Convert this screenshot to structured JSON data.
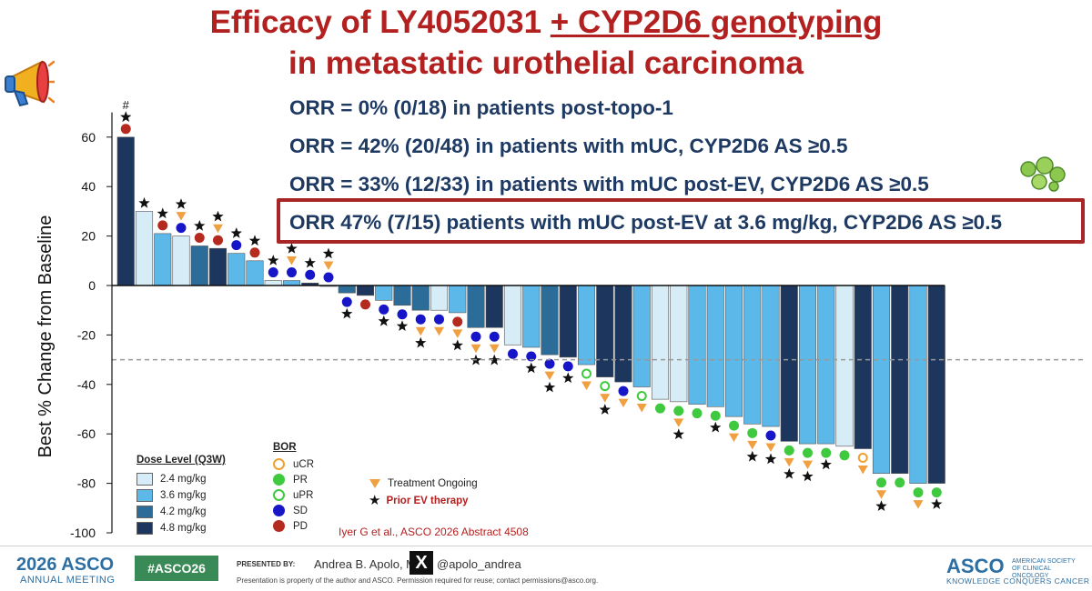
{
  "title": {
    "part1": "Efficacy of LY4052031 ",
    "part2": "+ CYP2D6 genotyping",
    "line2": "in metastatic urothelial carcinoma"
  },
  "orr": [
    "ORR = 0% (0/18) in patients post-topo-1",
    "ORR = 42% (20/48) in patients with mUC, CYP2D6 AS ≥0.5",
    "ORR = 33% (12/33) in patients with mUC post-EV, CYP2D6 AS ≥0.5",
    "ORR 47% (7/15) patients with mUC post-EV at 3.6 mg/kg, CYP2D6 AS ≥0.5"
  ],
  "legend": {
    "dose_title": "Dose Level (Q3W)",
    "doses": [
      {
        "label": "2.4 mg/kg",
        "color": "#d6ecf6"
      },
      {
        "label": "3.6 mg/kg",
        "color": "#5bb8e8"
      },
      {
        "label": "4.2 mg/kg",
        "color": "#2c6c99"
      },
      {
        "label": "4.8 mg/kg",
        "color": "#1c365e"
      }
    ],
    "bor_title": "BOR",
    "bor": [
      {
        "label": "uCR",
        "code": "uCR",
        "color": "#f0a030"
      },
      {
        "label": "PR",
        "code": "PR",
        "color": "#3ec93e"
      },
      {
        "label": "uPR",
        "code": "uPR",
        "color": "#3ec93e"
      },
      {
        "label": "SD",
        "code": "SD",
        "color": "#1616c8"
      },
      {
        "label": "PD",
        "code": "PD",
        "color": "#b52a1f"
      }
    ],
    "ongoing_label": "Treatment Ongoing",
    "ongoing_color": "#f0a040",
    "prior_ev_label": "Prior EV therapy",
    "prior_ev_color": "#b32020"
  },
  "chart_data": {
    "type": "bar",
    "ylabel": "Best % Change from Baseline",
    "ylim": [
      -100,
      70
    ],
    "yticks": [
      60,
      40,
      20,
      0,
      -20,
      -40,
      -60,
      -80,
      -100
    ],
    "reference_line": -30,
    "annotation_first_bar": "#",
    "dose_levels": [
      "2.4 mg/kg",
      "3.6 mg/kg",
      "4.2 mg/kg",
      "4.8 mg/kg"
    ],
    "bars": [
      {
        "value": 60,
        "dose": 3,
        "bor": "PD",
        "ongoing": false,
        "prior_ev": true
      },
      {
        "value": 30,
        "dose": 0,
        "bor": "",
        "ongoing": false,
        "prior_ev": true
      },
      {
        "value": 21,
        "dose": 1,
        "bor": "PD",
        "ongoing": false,
        "prior_ev": true
      },
      {
        "value": 20,
        "dose": 0,
        "bor": "SD",
        "ongoing": true,
        "prior_ev": true
      },
      {
        "value": 16,
        "dose": 2,
        "bor": "PD",
        "ongoing": false,
        "prior_ev": true
      },
      {
        "value": 15,
        "dose": 3,
        "bor": "PD",
        "ongoing": true,
        "prior_ev": true
      },
      {
        "value": 13,
        "dose": 1,
        "bor": "SD",
        "ongoing": false,
        "prior_ev": true
      },
      {
        "value": 10,
        "dose": 1,
        "bor": "PD",
        "ongoing": false,
        "prior_ev": true
      },
      {
        "value": 2,
        "dose": 0,
        "bor": "SD",
        "ongoing": false,
        "prior_ev": true
      },
      {
        "value": 2,
        "dose": 1,
        "bor": "SD",
        "ongoing": true,
        "prior_ev": true
      },
      {
        "value": 1,
        "dose": 3,
        "bor": "SD",
        "ongoing": false,
        "prior_ev": true
      },
      {
        "value": 0,
        "dose": 1,
        "bor": "SD",
        "ongoing": true,
        "prior_ev": true
      },
      {
        "value": -3,
        "dose": 2,
        "bor": "SD",
        "ongoing": false,
        "prior_ev": true
      },
      {
        "value": -4,
        "dose": 3,
        "bor": "PD",
        "ongoing": false,
        "prior_ev": false
      },
      {
        "value": -6,
        "dose": 1,
        "bor": "SD",
        "ongoing": false,
        "prior_ev": true
      },
      {
        "value": -8,
        "dose": 2,
        "bor": "SD",
        "ongoing": false,
        "prior_ev": true
      },
      {
        "value": -10,
        "dose": 2,
        "bor": "SD",
        "ongoing": true,
        "prior_ev": true
      },
      {
        "value": -10,
        "dose": 0,
        "bor": "SD",
        "ongoing": true,
        "prior_ev": false
      },
      {
        "value": -11,
        "dose": 1,
        "bor": "PD",
        "ongoing": true,
        "prior_ev": true
      },
      {
        "value": -17,
        "dose": 2,
        "bor": "SD",
        "ongoing": true,
        "prior_ev": true
      },
      {
        "value": -17,
        "dose": 3,
        "bor": "SD",
        "ongoing": true,
        "prior_ev": true
      },
      {
        "value": -24,
        "dose": 0,
        "bor": "SD",
        "ongoing": false,
        "prior_ev": false
      },
      {
        "value": -25,
        "dose": 1,
        "bor": "SD",
        "ongoing": false,
        "prior_ev": true
      },
      {
        "value": -28,
        "dose": 2,
        "bor": "SD",
        "ongoing": true,
        "prior_ev": true
      },
      {
        "value": -29,
        "dose": 3,
        "bor": "SD",
        "ongoing": false,
        "prior_ev": true
      },
      {
        "value": -32,
        "dose": 1,
        "bor": "uPR",
        "ongoing": true,
        "prior_ev": false
      },
      {
        "value": -37,
        "dose": 3,
        "bor": "uPR",
        "ongoing": true,
        "prior_ev": true
      },
      {
        "value": -39,
        "dose": 3,
        "bor": "SD",
        "ongoing": true,
        "prior_ev": false
      },
      {
        "value": -41,
        "dose": 1,
        "bor": "uPR",
        "ongoing": true,
        "prior_ev": false
      },
      {
        "value": -46,
        "dose": 0,
        "bor": "PR",
        "ongoing": false,
        "prior_ev": false
      },
      {
        "value": -47,
        "dose": 0,
        "bor": "PR",
        "ongoing": true,
        "prior_ev": true
      },
      {
        "value": -48,
        "dose": 1,
        "bor": "PR",
        "ongoing": false,
        "prior_ev": false
      },
      {
        "value": -49,
        "dose": 1,
        "bor": "PR",
        "ongoing": false,
        "prior_ev": true
      },
      {
        "value": -53,
        "dose": 1,
        "bor": "PR",
        "ongoing": true,
        "prior_ev": false
      },
      {
        "value": -56,
        "dose": 1,
        "bor": "PR",
        "ongoing": true,
        "prior_ev": true
      },
      {
        "value": -57,
        "dose": 1,
        "bor": "SD",
        "ongoing": true,
        "prior_ev": true
      },
      {
        "value": -63,
        "dose": 3,
        "bor": "PR",
        "ongoing": true,
        "prior_ev": true
      },
      {
        "value": -64,
        "dose": 1,
        "bor": "PR",
        "ongoing": true,
        "prior_ev": true
      },
      {
        "value": -64,
        "dose": 1,
        "bor": "PR",
        "ongoing": false,
        "prior_ev": true
      },
      {
        "value": -65,
        "dose": 0,
        "bor": "PR",
        "ongoing": false,
        "prior_ev": false
      },
      {
        "value": -66,
        "dose": 3,
        "bor": "uCR",
        "ongoing": true,
        "prior_ev": false
      },
      {
        "value": -76,
        "dose": 1,
        "bor": "PR",
        "ongoing": true,
        "prior_ev": true
      },
      {
        "value": -76,
        "dose": 3,
        "bor": "PR",
        "ongoing": false,
        "prior_ev": false
      },
      {
        "value": -80,
        "dose": 1,
        "bor": "PR",
        "ongoing": true,
        "prior_ev": false
      },
      {
        "value": -80,
        "dose": 3,
        "bor": "PR",
        "ongoing": false,
        "prior_ev": true
      }
    ]
  },
  "citation": "Iyer G et al., ASCO 2026 Abstract 4508",
  "footer": {
    "asco_year": "2026 ASCO",
    "asco_meeting": "ANNUAL MEETING",
    "hashtag": "#ASCO26",
    "presented_by": "PRESENTED BY:",
    "presenter": "Andrea B. Apolo, MD",
    "x_logo": "X",
    "handle": "@apolo_andrea",
    "disclaimer": "Presentation is property of the author and ASCO. Permission required for reuse; contact permissions@asco.org.",
    "asco_logo": "ASCO",
    "asco_society": "AMERICAN SOCIETY OF CLINICAL ONCOLOGY",
    "asco_tagline": "KNOWLEDGE CONQUERS CANCER"
  }
}
